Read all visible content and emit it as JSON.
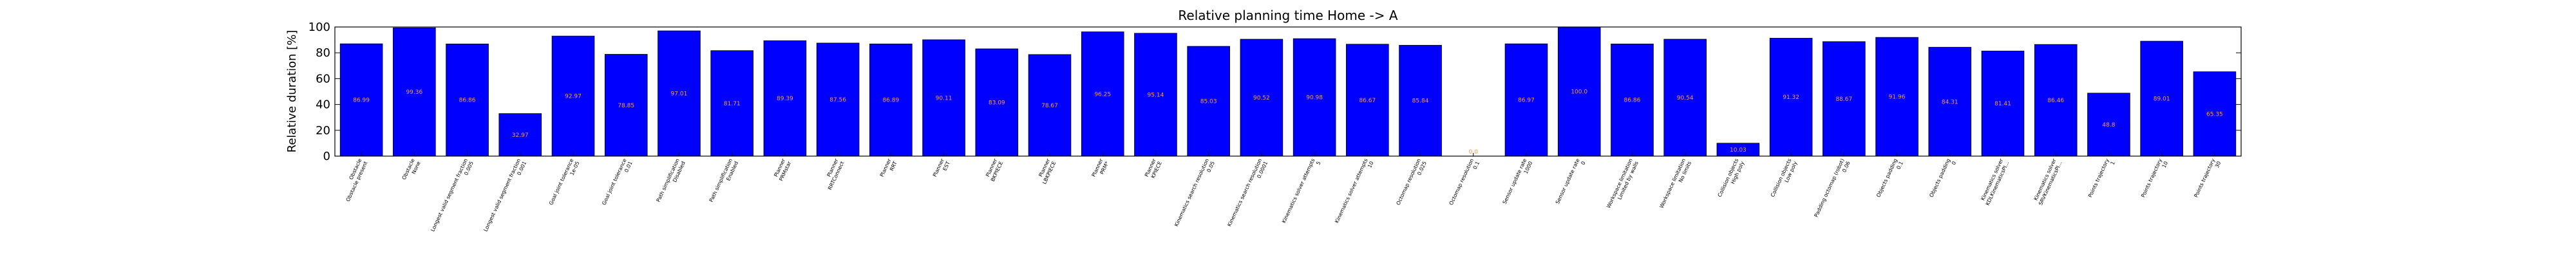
{
  "chart_data": {
    "type": "bar",
    "title": "Relative planning time Home -> A",
    "xlabel": "",
    "ylabel": "Relative duration [%]",
    "ylim": [
      0,
      100
    ],
    "yticks": [
      "0",
      "20",
      "40",
      "60",
      "80",
      "100"
    ],
    "grid": false,
    "bar_color": "#0000ff",
    "label_color": "#ff9a3c",
    "categories": [
      [
        "Obstacle",
        "Obstacle present"
      ],
      [
        "Obstacle",
        "None"
      ],
      [
        "Longest valid segment fraction",
        "0.005"
      ],
      [
        "Longest valid segment fraction",
        "0.001"
      ],
      [
        "Goal joint tolerance",
        "1e-05"
      ],
      [
        "Goal joint tolerance",
        "0.01"
      ],
      [
        "Path simplification",
        "Disabled"
      ],
      [
        "Path simplification",
        "Enabled"
      ],
      [
        "Planner",
        "PRMstar"
      ],
      [
        "Planner",
        "RRTConnect"
      ],
      [
        "Planner",
        "RRT"
      ],
      [
        "Planner",
        "EST"
      ],
      [
        "Planner",
        "BKPIECE"
      ],
      [
        "Planner",
        "LBKPIECE"
      ],
      [
        "Planner",
        "PRM*"
      ],
      [
        "Planner",
        "KPIECE"
      ],
      [
        "Kinematics search resolution",
        "0.05"
      ],
      [
        "Kinematics search resolution",
        "0.0001"
      ],
      [
        "Kinematics solver attempts",
        "5"
      ],
      [
        "Kinematics solver attempts",
        "10"
      ],
      [
        "Octomap resolution",
        "0.025"
      ],
      [
        "Octomap resolution",
        "0.1"
      ],
      [
        "Sensor update rate",
        "1000"
      ],
      [
        "Sensor update rate",
        "0"
      ],
      [
        "Workspace limitation",
        "Limited by walls"
      ],
      [
        "Workspace limitation",
        "No limits"
      ],
      [
        "Collision objects",
        "High poly"
      ],
      [
        "Collision objects",
        "Low poly"
      ],
      [
        "Padding octomap (robot)",
        "0.06"
      ],
      [
        "Objects padding",
        "0.1"
      ],
      [
        "Objects padding",
        "0"
      ],
      [
        "Kinematics solver",
        "KDLKinematicsPl..."
      ],
      [
        "Kinematics solver",
        "SRVKinematicsPl..."
      ],
      [
        "Points trajectory",
        "1"
      ],
      [
        "Points trajectory",
        "10"
      ],
      [
        "Points trajectory",
        "30"
      ]
    ],
    "values": [
      86.99,
      99.36,
      86.86,
      32.97,
      92.97,
      78.85,
      97.01,
      81.71,
      89.39,
      87.56,
      86.89,
      90.11,
      83.09,
      78.67,
      96.25,
      95.14,
      85.03,
      90.52,
      90.98,
      86.67,
      85.84,
      0.0,
      86.97,
      100.0,
      86.86,
      90.54,
      10.03,
      91.32,
      88.67,
      91.96,
      84.31,
      81.41,
      86.46,
      48.8,
      89.01,
      65.35
    ],
    "value_labels": [
      "86.99",
      "99.36",
      "86.86",
      "32.97",
      "92.97",
      "78.85",
      "97.01",
      "81.71",
      "89.39",
      "87.56",
      "86.89",
      "90.11",
      "83.09",
      "78.67",
      "96.25",
      "95.14",
      "85.03",
      "90.52",
      "90.98",
      "86.67",
      "85.84",
      "0.0",
      "86.97",
      "100.0",
      "86.86",
      "90.54",
      "10.03",
      "91.32",
      "88.67",
      "91.96",
      "84.31",
      "81.41",
      "86.46",
      "48.8",
      "89.01",
      "65.35"
    ]
  }
}
